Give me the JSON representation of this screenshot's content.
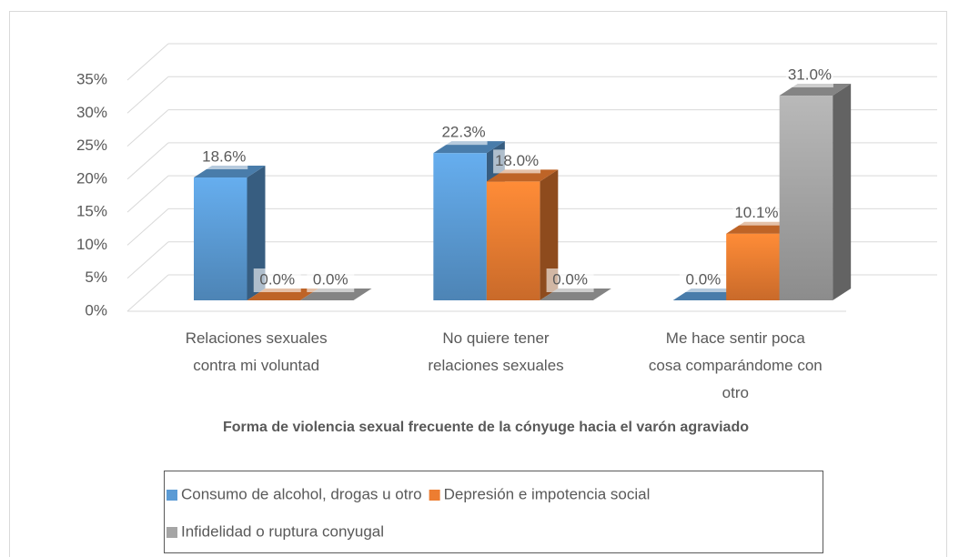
{
  "chart_data": {
    "type": "bar3d",
    "x_label": "Forma de violencia sexual frecuente de la cónyuge hacia el varón agraviado",
    "categories": [
      "Relaciones sexuales contra mi voluntad",
      "No quiere tener relaciones sexuales",
      "Me hace sentir poca cosa comparándome con otro"
    ],
    "series": [
      {
        "name": "Consumo de alcohol, drogas u otro",
        "color": "#5b9bd5",
        "values": [
          18.6,
          22.3,
          0.0
        ],
        "value_labels": [
          "18.6%",
          "22.3%",
          "0.0%"
        ]
      },
      {
        "name": "Depresión e impotencia social",
        "color": "#ed7d31",
        "values": [
          0.0,
          18.0,
          10.1
        ],
        "value_labels": [
          "0.0%",
          "18.0%",
          "10.1%"
        ]
      },
      {
        "name": "Infidelidad o ruptura conyugal",
        "color": "#a5a5a5",
        "values": [
          0.0,
          0.0,
          31.0
        ],
        "value_labels": [
          "0.0%",
          "0.0%",
          "31.0%"
        ]
      }
    ],
    "ylim": [
      0,
      35
    ],
    "yticks": [
      {
        "value": 0,
        "label": "0%"
      },
      {
        "value": 5,
        "label": "5%"
      },
      {
        "value": 10,
        "label": "10%"
      },
      {
        "value": 15,
        "label": "15%"
      },
      {
        "value": 20,
        "label": "20%"
      },
      {
        "value": 25,
        "label": "25%"
      },
      {
        "value": 30,
        "label": "30%"
      },
      {
        "value": 35,
        "label": "35%"
      }
    ],
    "grid": true,
    "legend": "bottom"
  }
}
